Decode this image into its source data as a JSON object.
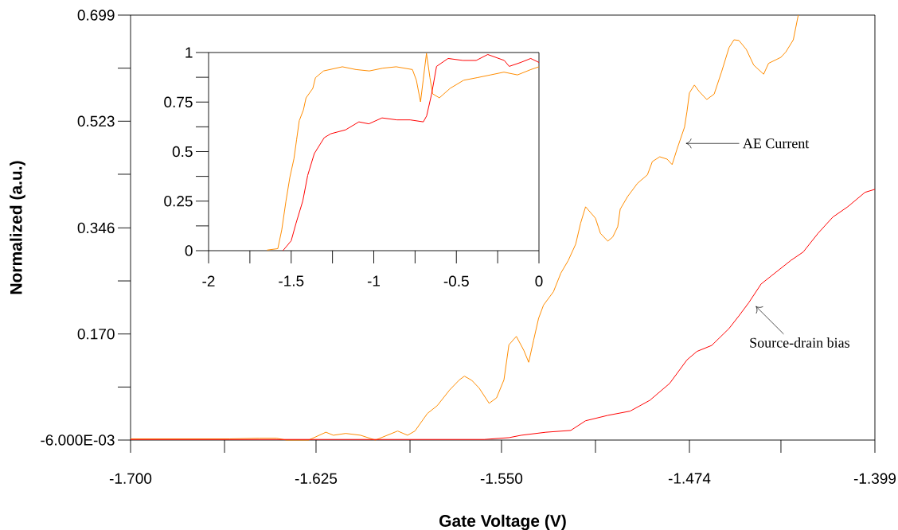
{
  "chart_data": [
    {
      "type": "line",
      "xlabel": "Gate Voltage (V)",
      "ylabel": "Normalized (a.u.)",
      "xlim": [
        -1.7,
        -1.399
      ],
      "ylim": [
        -0.006,
        0.699
      ],
      "xticks": [
        {
          "value": -1.7,
          "label": "-1.700"
        },
        {
          "value": -1.662,
          "label": null
        },
        {
          "value": -1.625,
          "label": "-1.625"
        },
        {
          "value": -1.587,
          "label": null
        },
        {
          "value": -1.55,
          "label": "-1.550"
        },
        {
          "value": -1.512,
          "label": null
        },
        {
          "value": -1.474,
          "label": "-1.474"
        },
        {
          "value": -1.437,
          "label": null
        },
        {
          "value": -1.399,
          "label": "-1.399"
        }
      ],
      "yticks": [
        {
          "value": -0.006,
          "label": "-6.000E-03"
        },
        {
          "value": 0.082,
          "label": null
        },
        {
          "value": 0.17,
          "label": "0.170"
        },
        {
          "value": 0.258,
          "label": null
        },
        {
          "value": 0.346,
          "label": "0.346"
        },
        {
          "value": 0.435,
          "label": null
        },
        {
          "value": 0.523,
          "label": "0.523"
        },
        {
          "value": 0.611,
          "label": null
        },
        {
          "value": 0.699,
          "label": "0.699"
        }
      ],
      "annotations": [
        "AE Current",
        "Source-drain bias"
      ],
      "series": [
        {
          "color": "#ff8c00",
          "x": [
            -1.7,
            -1.66,
            -1.648,
            -1.641,
            -1.637,
            -1.628,
            -1.621,
            -1.618,
            -1.613,
            -1.607,
            -1.601,
            -1.592,
            -1.588,
            -1.585,
            -1.58,
            -1.576,
            -1.571,
            -1.567,
            -1.565,
            -1.562,
            -1.559,
            -1.555,
            -1.552,
            -1.549,
            -1.547,
            -1.544,
            -1.541,
            -1.539,
            -1.537,
            -1.535,
            -1.533,
            -1.529,
            -1.526,
            -1.523,
            -1.52,
            -1.518,
            -1.516,
            -1.512,
            -1.51,
            -1.507,
            -1.505,
            -1.503,
            -1.502,
            -1.499,
            -1.495,
            -1.491,
            -1.489,
            -1.486,
            -1.483,
            -1.481,
            -1.479,
            -1.476,
            -1.475,
            -1.474,
            -1.472,
            -1.47,
            -1.467,
            -1.464,
            -1.461,
            -1.458,
            -1.456,
            -1.454,
            -1.451,
            -1.448,
            -1.444,
            -1.442,
            -1.437,
            -1.435,
            -1.432,
            -1.43
          ],
          "values": [
            -0.004,
            -0.004,
            -0.003,
            -0.003,
            -0.006,
            -0.006,
            0.007,
            0.002,
            0.005,
            0.002,
            -0.006,
            0.009,
            0.002,
            0.009,
            0.038,
            0.051,
            0.077,
            0.094,
            0.1,
            0.093,
            0.08,
            0.055,
            0.064,
            0.094,
            0.152,
            0.166,
            0.143,
            0.123,
            0.16,
            0.196,
            0.218,
            0.24,
            0.271,
            0.292,
            0.319,
            0.354,
            0.381,
            0.362,
            0.337,
            0.324,
            0.331,
            0.348,
            0.377,
            0.398,
            0.42,
            0.434,
            0.456,
            0.464,
            0.46,
            0.451,
            0.477,
            0.513,
            0.539,
            0.57,
            0.583,
            0.572,
            0.559,
            0.568,
            0.605,
            0.645,
            0.658,
            0.657,
            0.642,
            0.616,
            0.601,
            0.619,
            0.629,
            0.638,
            0.658,
            0.699
          ]
        },
        {
          "color": "#ff0000",
          "x": [
            -1.7,
            -1.585,
            -1.557,
            -1.547,
            -1.542,
            -1.532,
            -1.522,
            -1.516,
            -1.507,
            -1.498,
            -1.49,
            -1.482,
            -1.475,
            -1.471,
            -1.465,
            -1.458,
            -1.454,
            -1.45,
            -1.445,
            -1.441,
            -1.433,
            -1.428,
            -1.422,
            -1.416,
            -1.41,
            -1.403,
            -1.399
          ],
          "values": [
            -0.005,
            -0.005,
            -0.005,
            -0.002,
            0.002,
            0.007,
            0.01,
            0.026,
            0.035,
            0.042,
            0.06,
            0.088,
            0.127,
            0.141,
            0.151,
            0.179,
            0.2,
            0.222,
            0.253,
            0.266,
            0.292,
            0.306,
            0.337,
            0.364,
            0.381,
            0.405,
            0.41
          ]
        }
      ]
    },
    {
      "type": "line",
      "xlim": [
        -2,
        0
      ],
      "ylim": [
        0,
        1
      ],
      "xticks": [
        -2,
        {
          "value": -1.75,
          "label": null
        },
        -1.5,
        {
          "value": -1.25,
          "label": null
        },
        -1,
        {
          "value": -0.75,
          "label": null
        },
        -0.5,
        {
          "value": -0.25,
          "label": null
        },
        0
      ],
      "yticks": [
        0,
        {
          "value": 0.125,
          "label": null
        },
        0.25,
        {
          "value": 0.375,
          "label": null
        },
        0.5,
        {
          "value": 0.625,
          "label": null
        },
        0.75,
        {
          "value": 0.875,
          "label": null
        },
        1
      ],
      "series": [
        {
          "color": "#ff8c00",
          "x": [
            -1.646,
            -1.581,
            -1.557,
            -1.532,
            -1.508,
            -1.483,
            -1.467,
            -1.451,
            -1.426,
            -1.41,
            -1.369,
            -1.353,
            -1.304,
            -1.19,
            -1.108,
            -1.027,
            -0.945,
            -0.864,
            -0.766,
            -0.742,
            -0.717,
            -0.701,
            -0.681,
            -0.66,
            -0.644,
            -0.603,
            -0.538,
            -0.456,
            -0.375,
            -0.293,
            -0.212,
            -0.13,
            -0.049,
            0
          ],
          "values": [
            0.003,
            0.01,
            0.105,
            0.248,
            0.37,
            0.465,
            0.561,
            0.656,
            0.71,
            0.771,
            0.819,
            0.873,
            0.907,
            0.928,
            0.914,
            0.907,
            0.921,
            0.928,
            0.914,
            0.86,
            0.751,
            0.86,
            0.996,
            0.873,
            0.792,
            0.771,
            0.819,
            0.86,
            0.873,
            0.887,
            0.901,
            0.887,
            0.914,
            0.928
          ]
        },
        {
          "color": "#ff0000",
          "x": [
            -1.55,
            -1.5,
            -1.47,
            -1.43,
            -1.4,
            -1.36,
            -1.3,
            -1.26,
            -1.17,
            -1.09,
            -1.03,
            -0.95,
            -0.86,
            -0.78,
            -0.7,
            -0.68,
            -0.65,
            -0.62,
            -0.55,
            -0.46,
            -0.38,
            -0.31,
            -0.21,
            -0.18,
            -0.11,
            -0.05,
            0
          ],
          "values": [
            0,
            0.05,
            0.14,
            0.25,
            0.38,
            0.49,
            0.57,
            0.59,
            0.61,
            0.65,
            0.64,
            0.67,
            0.66,
            0.66,
            0.65,
            0.68,
            0.79,
            0.93,
            0.97,
            0.96,
            0.96,
            0.99,
            0.96,
            0.93,
            0.95,
            0.97,
            0.95
          ]
        }
      ]
    }
  ]
}
